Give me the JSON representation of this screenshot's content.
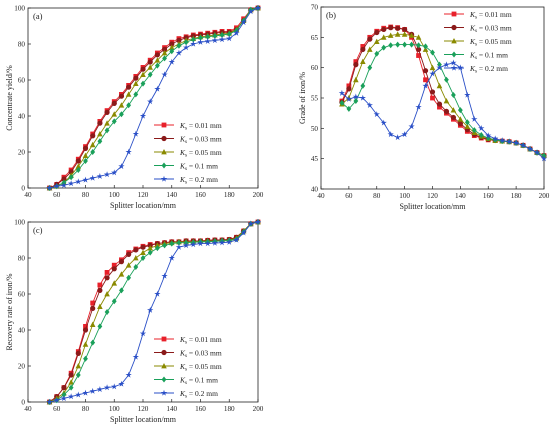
{
  "chart_data": [
    {
      "type": "line",
      "panel_label": "(a)",
      "xlabel": "Splitter location/mm",
      "ylabel": "Concentrate yield/%",
      "xlim": [
        40,
        200
      ],
      "ylim": [
        0,
        100
      ],
      "xticks": [
        "40",
        "60",
        "80",
        "100",
        "120",
        "140",
        "160",
        "180",
        "200"
      ],
      "yticks": [
        "0",
        "20",
        "40",
        "60",
        "80",
        "100"
      ],
      "legend_position": "bottom-right",
      "x": [
        55,
        60,
        65,
        70,
        75,
        80,
        85,
        90,
        95,
        100,
        105,
        110,
        115,
        120,
        125,
        130,
        135,
        140,
        145,
        150,
        155,
        160,
        165,
        170,
        175,
        180,
        185,
        190,
        195,
        200
      ],
      "series": [
        {
          "label_k": "K",
          "label_sub": "s",
          "label_val": " = 0.01 mm",
          "color": "#e8202a",
          "marker": "square",
          "values": [
            0,
            2,
            6,
            10,
            16,
            23,
            30,
            37,
            43,
            48,
            52,
            57,
            62,
            67,
            71,
            75,
            78,
            81,
            83,
            84,
            85,
            85.5,
            86,
            86.5,
            87,
            87,
            89,
            94,
            99,
            100
          ]
        },
        {
          "label_k": "K",
          "label_sub": "s",
          "label_val": " = 0.03 mm",
          "color": "#8b1a1a",
          "marker": "circle",
          "values": [
            0,
            2,
            5,
            9,
            15,
            22,
            29,
            36,
            42,
            47,
            51,
            56,
            61,
            66,
            70,
            74,
            77,
            80,
            82,
            83.5,
            84.5,
            85,
            85.5,
            86,
            86.5,
            86.5,
            88,
            93,
            99,
            100
          ]
        },
        {
          "label_k": "K",
          "label_sub": "s",
          "label_val": " = 0.05 mm",
          "color": "#8a8a00",
          "marker": "triangle",
          "values": [
            0,
            1,
            3,
            7,
            12,
            18,
            24,
            30,
            36,
            41,
            46,
            52,
            58,
            63,
            67,
            71,
            75,
            78,
            80,
            82,
            83,
            84,
            84.5,
            85,
            85.5,
            86,
            88,
            93,
            99,
            100
          ]
        },
        {
          "label_k": "K",
          "label_sub": "s",
          "label_val": " = 0.1 mm",
          "color": "#1aa05a",
          "marker": "diamond",
          "values": [
            0,
            1,
            3,
            6,
            10,
            15,
            20,
            26,
            32,
            37,
            41,
            46,
            52,
            58,
            63,
            68,
            72,
            76,
            79,
            81,
            82.5,
            83.5,
            84,
            84.5,
            85,
            85.5,
            87.5,
            93,
            99,
            100
          ]
        },
        {
          "label_k": "K",
          "label_sub": "s",
          "label_val": " = 0.2 mm",
          "color": "#2a4fc7",
          "marker": "star",
          "values": [
            0,
            1,
            1.5,
            2.5,
            3.5,
            4.5,
            5.5,
            6.5,
            7.5,
            8.5,
            12,
            20,
            30,
            40,
            48,
            55,
            63,
            70,
            75,
            78,
            80,
            81,
            81.5,
            82,
            82.5,
            83,
            86,
            92,
            98,
            100
          ]
        }
      ]
    },
    {
      "type": "line",
      "panel_label": "(b)",
      "xlabel": "Splitter location/mm",
      "ylabel": "Grade of iron/%",
      "xlim": [
        40,
        200
      ],
      "ylim": [
        40,
        70
      ],
      "xticks": [
        "40",
        "60",
        "80",
        "100",
        "120",
        "140",
        "160",
        "180",
        "200"
      ],
      "yticks": [
        "40",
        "45",
        "50",
        "55",
        "60",
        "65",
        "70"
      ],
      "legend_position": "top-right",
      "x": [
        55,
        60,
        65,
        70,
        75,
        80,
        85,
        90,
        95,
        100,
        105,
        110,
        115,
        120,
        125,
        130,
        135,
        140,
        145,
        150,
        155,
        160,
        165,
        170,
        175,
        180,
        185,
        190,
        195,
        200
      ],
      "series": [
        {
          "label_k": "K",
          "label_sub": "s",
          "label_val": " = 0.01 mm",
          "color": "#e8202a",
          "marker": "square",
          "values": [
            54.5,
            57,
            61,
            63.5,
            65,
            66,
            66.5,
            66.7,
            66.6,
            66.3,
            65,
            62,
            58,
            55,
            53.5,
            52.5,
            51.5,
            50.5,
            49.5,
            48.8,
            48.4,
            48.1,
            48,
            47.9,
            47.8,
            47.6,
            47.2,
            46.6,
            46,
            45.5
          ]
        },
        {
          "label_k": "K",
          "label_sub": "s",
          "label_val": " = 0.03 mm",
          "color": "#8b1a1a",
          "marker": "circle",
          "values": [
            54.3,
            56.5,
            60.5,
            63,
            64.7,
            65.8,
            66.3,
            66.6,
            66.5,
            66.3,
            65.5,
            63,
            59.5,
            56,
            54,
            52.8,
            51.8,
            50.8,
            49.8,
            49,
            48.5,
            48.2,
            48,
            47.9,
            47.8,
            47.6,
            47.2,
            46.6,
            46,
            45.5
          ]
        },
        {
          "label_k": "K",
          "label_sub": "s",
          "label_val": " = 0.05 mm",
          "color": "#8a8a00",
          "marker": "triangle",
          "values": [
            54,
            55,
            58,
            61,
            63,
            64.3,
            65,
            65.3,
            65.5,
            65.5,
            65.3,
            65,
            63,
            60,
            57,
            54.5,
            53,
            51.5,
            50.3,
            49.3,
            48.7,
            48.3,
            48,
            47.9,
            47.8,
            47.6,
            47.2,
            46.6,
            46,
            45.5
          ]
        },
        {
          "label_k": "K",
          "label_sub": "s",
          "label_val": " = 0.1 mm",
          "color": "#1aa05a",
          "marker": "diamond",
          "values": [
            54.2,
            53.2,
            54.5,
            57,
            60,
            62.3,
            63.3,
            63.7,
            63.8,
            63.8,
            63.8,
            63.7,
            63.5,
            62.5,
            60.5,
            58,
            55.5,
            53,
            51,
            49.7,
            48.9,
            48.4,
            48.1,
            47.9,
            47.8,
            47.6,
            47.2,
            46.6,
            46,
            45.5
          ]
        },
        {
          "label_k": "K",
          "label_sub": "s",
          "label_val": " = 0.2 mm",
          "color": "#2a4fc7",
          "marker": "star",
          "values": [
            55.8,
            54.8,
            55.2,
            55,
            53.8,
            52.3,
            50.9,
            49,
            48.5,
            49,
            50.3,
            53.5,
            57,
            59,
            60,
            60.5,
            60.8,
            60,
            55.5,
            51.5,
            50,
            48.8,
            48.3,
            48,
            47.8,
            47.6,
            47.2,
            46.6,
            46,
            45
          ]
        }
      ]
    },
    {
      "type": "line",
      "panel_label": "(c)",
      "xlabel": "Splitter location/mm",
      "ylabel": "Recovery rate of iron/%",
      "xlim": [
        40,
        200
      ],
      "ylim": [
        0,
        100
      ],
      "xticks": [
        "40",
        "60",
        "80",
        "100",
        "120",
        "140",
        "160",
        "180",
        "200"
      ],
      "yticks": [
        "0",
        "20",
        "40",
        "60",
        "80",
        "100"
      ],
      "legend_position": "bottom-right",
      "x": [
        55,
        60,
        65,
        70,
        75,
        80,
        85,
        90,
        95,
        100,
        105,
        110,
        115,
        120,
        125,
        130,
        135,
        140,
        145,
        150,
        155,
        160,
        165,
        170,
        175,
        180,
        185,
        190,
        195,
        200
      ],
      "series": [
        {
          "label_k": "K",
          "label_sub": "s",
          "label_val": " = 0.01 mm",
          "color": "#e8202a",
          "marker": "square",
          "values": [
            0,
            3,
            8,
            16,
            28,
            42,
            55,
            65,
            72,
            76,
            79,
            83,
            85,
            86.5,
            87.5,
            88,
            88.5,
            89,
            89,
            89.5,
            89.5,
            89.5,
            89.8,
            90,
            90,
            90.3,
            91.5,
            95,
            99,
            100
          ]
        },
        {
          "label_k": "K",
          "label_sub": "s",
          "label_val": " = 0.03 mm",
          "color": "#8b1a1a",
          "marker": "circle",
          "values": [
            0,
            3,
            8,
            15,
            27,
            40,
            52,
            62,
            69,
            74,
            78,
            82,
            84.5,
            86,
            87,
            88,
            88.5,
            89,
            89,
            89.5,
            89.5,
            89.5,
            89.8,
            90,
            90,
            90.3,
            91.5,
            95,
            99,
            100
          ]
        },
        {
          "label_k": "K",
          "label_sub": "s",
          "label_val": " = 0.05 mm",
          "color": "#8a8a00",
          "marker": "triangle",
          "values": [
            0,
            2,
            5,
            11,
            20,
            32,
            43,
            53,
            60,
            66,
            71,
            76,
            80,
            83,
            85.5,
            87,
            88,
            88.5,
            89,
            89,
            89,
            89.3,
            89.5,
            89.5,
            89.7,
            90,
            91,
            95,
            99,
            100
          ]
        },
        {
          "label_k": "K",
          "label_sub": "s",
          "label_val": " = 0.1 mm",
          "color": "#1aa05a",
          "marker": "diamond",
          "values": [
            0,
            1,
            4,
            8,
            15,
            24,
            33,
            42,
            50,
            56,
            62,
            69,
            75,
            80,
            83,
            85.5,
            87,
            88,
            88.5,
            88.5,
            88.7,
            89,
            89,
            89.3,
            89.5,
            89.7,
            90.5,
            94.5,
            99,
            100
          ]
        },
        {
          "label_k": "K",
          "label_sub": "s",
          "label_val": " = 0.2 mm",
          "color": "#2a4fc7",
          "marker": "star",
          "values": [
            0,
            1,
            2,
            3,
            4,
            5,
            6,
            7,
            8,
            8.5,
            10,
            15,
            25,
            38,
            51,
            60,
            70,
            80,
            86,
            87,
            87.5,
            88,
            88,
            88.3,
            88.5,
            88.8,
            90,
            94,
            99,
            100
          ]
        }
      ]
    }
  ]
}
